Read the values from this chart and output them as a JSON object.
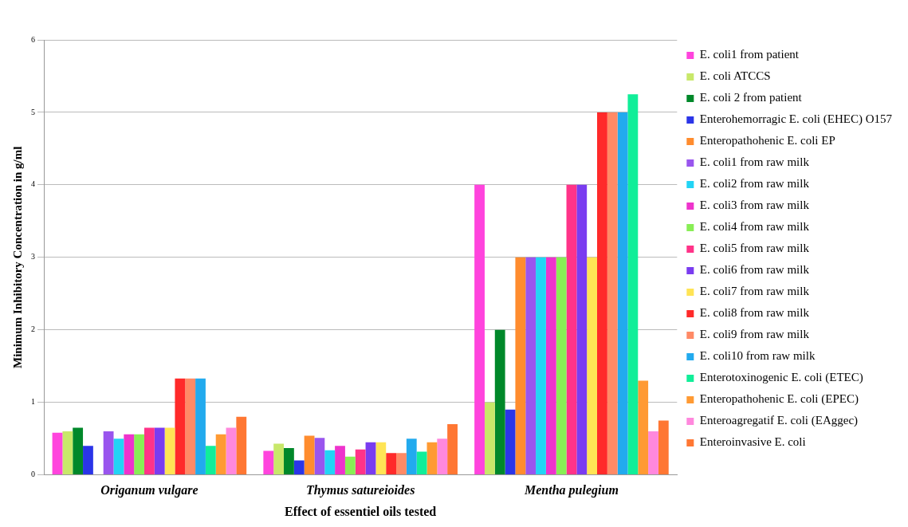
{
  "chart_data": {
    "type": "bar",
    "xlabel": "Effect of essentiel oils tested",
    "ylabel": "Minimum Inhibitory Concentration in g/ml",
    "categories": [
      "Origanum vulgare",
      "Thymus satureioides",
      "Mentha pulegium"
    ],
    "ylim": [
      0,
      6
    ],
    "yticks": [
      0,
      1,
      2,
      3,
      4,
      5,
      6
    ],
    "grid": "y",
    "legend": "right",
    "series": [
      {
        "name": "E. coli1 from patient",
        "color": "#ff44dd",
        "values": [
          0.58,
          0.33,
          4
        ]
      },
      {
        "name": "E. coli ATCCS",
        "color": "#c8e86a",
        "values": [
          0.6,
          0.43,
          1
        ]
      },
      {
        "name": "E. coli 2 from patient",
        "color": "#00882a",
        "values": [
          0.65,
          0.37,
          2
        ]
      },
      {
        "name": "Enterohemorragic E. coli (EHEC) O157",
        "color": "#2b35e8",
        "values": [
          0.4,
          0.2,
          0.9
        ]
      },
      {
        "name": "Enteropathohenic E. coli EP",
        "color": "#ff8c2e",
        "values": [
          0,
          0.54,
          3
        ]
      },
      {
        "name": "E. coli1 from raw milk",
        "color": "#9955ee",
        "values": [
          0.6,
          0.51,
          3
        ]
      },
      {
        "name": "E. coli2 from raw milk",
        "color": "#22d4f5",
        "values": [
          0.5,
          0.34,
          3
        ]
      },
      {
        "name": "E. coli3 from raw milk",
        "color": "#ee33cc",
        "values": [
          0.56,
          0.4,
          3
        ]
      },
      {
        "name": "E. coli4 from raw milk",
        "color": "#88ee55",
        "values": [
          0.56,
          0.25,
          3
        ]
      },
      {
        "name": "E. coli5 from raw milk",
        "color": "#ff3388",
        "values": [
          0.65,
          0.35,
          4
        ]
      },
      {
        "name": "E. coli6 from raw milk",
        "color": "#7a3cf0",
        "values": [
          0.65,
          0.45,
          4
        ]
      },
      {
        "name": "E. coli7 from raw milk",
        "color": "#ffe455",
        "values": [
          0.65,
          0.45,
          3
        ]
      },
      {
        "name": "E. coli8 from raw milk",
        "color": "#ff2a2a",
        "values": [
          1.33,
          0.3,
          5
        ]
      },
      {
        "name": "E. coli9 from raw milk",
        "color": "#ff8a66",
        "values": [
          1.33,
          0.3,
          5
        ]
      },
      {
        "name": "E. coli10 from raw milk",
        "color": "#22aaee",
        "values": [
          1.33,
          0.5,
          5
        ]
      },
      {
        "name": "Enterotoxinogenic E. coli (ETEC)",
        "color": "#11ee99",
        "values": [
          0.4,
          0.32,
          5.25
        ]
      },
      {
        "name": "Enteropathohenic E. coli (EPEC)",
        "color": "#ff9a33",
        "values": [
          0.56,
          0.45,
          1.3
        ]
      },
      {
        "name": "Enteroagregatif E. coli (EAggec)",
        "color": "#ff88dd",
        "values": [
          0.65,
          0.5,
          0.6
        ]
      },
      {
        "name": "Enteroinvasive E. coli",
        "color": "#ff7733",
        "values": [
          0.8,
          0.7,
          0.75
        ]
      }
    ]
  }
}
